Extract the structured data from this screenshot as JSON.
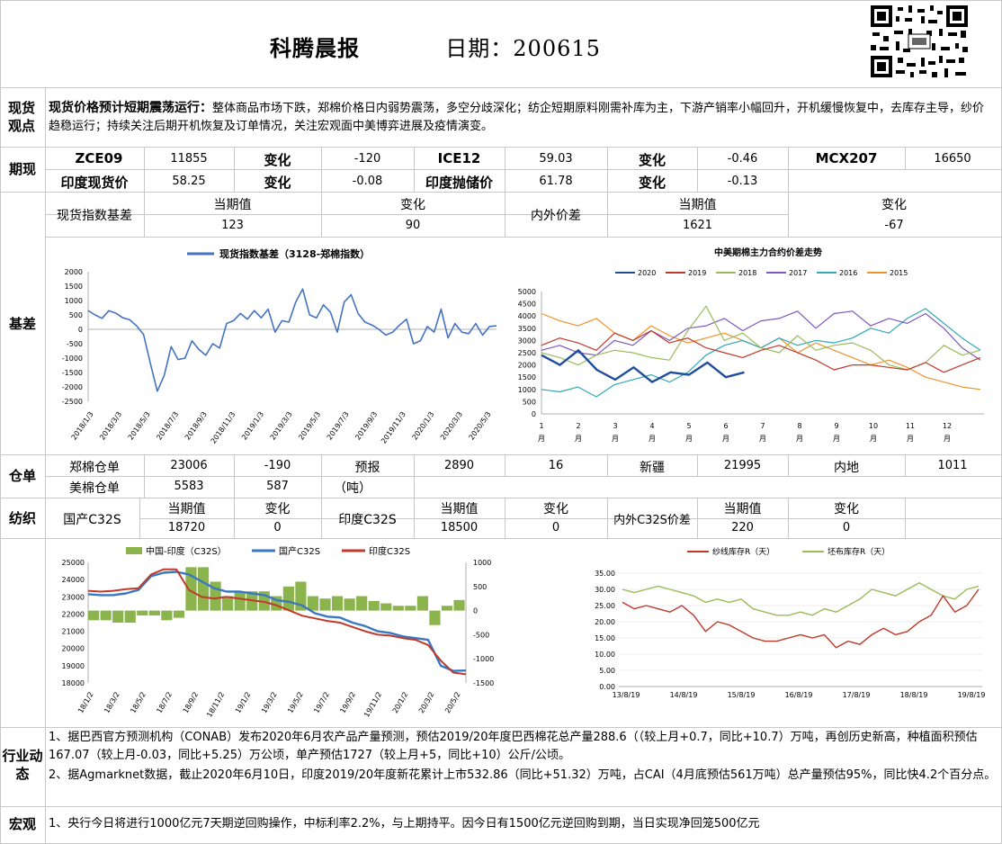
{
  "header": {
    "title": "科腾晨报",
    "date_label": "日期：200615"
  },
  "spot": {
    "label": "现货观点",
    "lead": "现货价格预计短期震荡运行：",
    "body": "整体商品市场下跌，郑棉价格日内弱势震荡，多空分歧深化；纺企短期原料刚需补库为主，下游产销率小幅回升，开机缓慢恢复中，去库存主导，纱价趋稳运行；持续关注后期开机恢复及订单情况，关注宏观面中美博弈进展及疫情演变。"
  },
  "futures": {
    "label": "期现",
    "r1": [
      "ZCE09",
      "11855",
      "变化",
      "-120",
      "ICE12",
      "59.03",
      "变化",
      "-0.46",
      "MCX207",
      "16650"
    ],
    "r2": [
      "印度现货价",
      "58.25",
      "变化",
      "-0.08",
      "印度抛储价",
      "61.78",
      "变化",
      "-0.13"
    ]
  },
  "basis": {
    "label": "基差",
    "h1": "当期值",
    "h2": "变化",
    "h3": "当期值",
    "h4": "变化",
    "l1": "现货指数基差",
    "v1": "123",
    "c1": "90",
    "l2": "内外价差",
    "v2": "1621",
    "c2": "-67"
  },
  "chart_basis": {
    "type": "line",
    "legend": "现货指数基差（3128-郑棉指数）",
    "yticks": [
      "2000",
      "1500",
      "1000",
      "500",
      "0",
      "-500",
      "-1000",
      "-1500",
      "-2000",
      "-2500"
    ],
    "xticks": [
      "2018/1/3",
      "2018/3/3",
      "2018/5/3",
      "2018/7/3",
      "2018/9/3",
      "2018/11/3",
      "2019/1/3",
      "2019/3/3",
      "2019/5/3",
      "2019/7/3",
      "2019/9/3",
      "2019/11/3",
      "2020/1/3",
      "2020/3/3",
      "2020/5/3"
    ],
    "ylim": [
      -2500,
      2000
    ],
    "color": "#4472c4",
    "values": [
      650,
      500,
      380,
      650,
      560,
      400,
      330,
      120,
      -180,
      -1200,
      -2150,
      -1600,
      -600,
      -1050,
      -1000,
      -400,
      -700,
      -900,
      -500,
      -650,
      200,
      300,
      550,
      350,
      650,
      400,
      700,
      -100,
      300,
      250,
      950,
      1400,
      500,
      400,
      850,
      600,
      -100,
      950,
      1200,
      550,
      250,
      150,
      0,
      -200,
      -100,
      150,
      350,
      -500,
      -400,
      100,
      -100,
      700,
      -300,
      200,
      -100,
      -150,
      200,
      -200,
      100,
      123
    ]
  },
  "chart_spread": {
    "type": "line",
    "title": "中美期棉主力合约价差走势",
    "yticks": [
      "5000",
      "4500",
      "4000",
      "3500",
      "3000",
      "2500",
      "2000",
      "1500",
      "1000",
      "500",
      "0"
    ],
    "xticks": [
      "1",
      "2",
      "3",
      "4",
      "5",
      "6",
      "7",
      "8",
      "9",
      "10",
      "11",
      "12"
    ],
    "month_suffix": "月",
    "ylim": [
      0,
      5000
    ],
    "series": [
      {
        "name": "2020",
        "color": "#1f4e9c",
        "values": [
          2400,
          2000,
          2600,
          1800,
          1400,
          1900,
          1300,
          1700,
          1600,
          2100,
          1500,
          1700
        ]
      },
      {
        "name": "2019",
        "color": "#c0392b",
        "values": [
          2800,
          3100,
          2900,
          2600,
          3300,
          3000,
          3400,
          2900,
          3100,
          2700,
          2500,
          2300,
          2600,
          2800,
          2500,
          2200,
          1800,
          2000,
          2000,
          1900,
          1800,
          2100,
          1700,
          2000,
          2300
        ]
      },
      {
        "name": "2018",
        "color": "#9bbb59",
        "values": [
          2500,
          2300,
          2000,
          2400,
          2600,
          2500,
          2300,
          2200,
          3400,
          4400,
          3000,
          3300,
          2700,
          2500,
          3200,
          2600,
          2800,
          2900,
          2600,
          2000,
          1800,
          2100,
          2800,
          2400,
          2600
        ]
      },
      {
        "name": "2017",
        "color": "#7e57c2",
        "values": [
          2600,
          2800,
          2500,
          2400,
          3000,
          2800,
          3400,
          3000,
          3500,
          3600,
          3900,
          3400,
          3800,
          3900,
          4200,
          3500,
          4100,
          4200,
          3600,
          3900,
          3700,
          4100,
          3500,
          2700,
          2200
        ]
      },
      {
        "name": "2016",
        "color": "#31a9b8",
        "values": [
          1000,
          900,
          1100,
          700,
          1200,
          1400,
          1600,
          1300,
          1700,
          2400,
          2800,
          3000,
          2700,
          3100,
          2800,
          3000,
          2900,
          3100,
          3500,
          3300,
          3900,
          4300,
          3700,
          3100,
          2600
        ]
      },
      {
        "name": "2015",
        "color": "#f0932b",
        "values": [
          4100,
          3800,
          3600,
          3900,
          3300,
          3000,
          3600,
          3200,
          2900,
          3100,
          3300,
          3000,
          2700,
          3100,
          2500,
          2900,
          2600,
          2300,
          2000,
          2200,
          1900,
          1500,
          1300,
          1100,
          1000
        ]
      }
    ]
  },
  "warehouse": {
    "label": "仓单",
    "a": "郑棉仓单",
    "av": "23006",
    "ac": "-190",
    "b": "预报",
    "bv": "2890",
    "bc": "16",
    "c": "新疆",
    "cv": "21995",
    "d": "内地",
    "dv": "1011",
    "e": "美棉仓单",
    "ev": "5583",
    "ec": "587",
    "f": "（吨）"
  },
  "yarn": {
    "label": "纺织",
    "a": "国产C32S",
    "h1": "当期值",
    "h2": "变化",
    "av": "18720",
    "ac": "0",
    "b": "印度C32S",
    "h3": "当期值",
    "h4": "变化",
    "bv": "18500",
    "bc": "0",
    "c": "内外C32S价差",
    "h5": "当期值",
    "h6": "变化",
    "cv": "220",
    "cc": "0"
  },
  "chart_yarn": {
    "type": "bar+line",
    "legend": [
      "中国-印度（C32S）",
      "国产C32S",
      "印度C32S"
    ],
    "yleft": [
      "25000",
      "24000",
      "23000",
      "22000",
      "21000",
      "20000",
      "19000",
      "18000"
    ],
    "yright": [
      "1000",
      "500",
      "0",
      "-500",
      "-1000",
      "-1500"
    ],
    "xticks": [
      "18/1/2",
      "18/3/2",
      "18/5/2",
      "18/7/2",
      "18/9/2",
      "18/11/2",
      "19/1/2",
      "19/3/2",
      "19/5/2",
      "19/7/2",
      "19/9/2",
      "19/11/2",
      "20/1/2",
      "20/3/2",
      "20/5/2"
    ],
    "ylim": [
      18000,
      25000
    ],
    "y2lim": [
      -1500,
      1000
    ],
    "colors": {
      "bar": "#8cb44c",
      "cn": "#3a78c3",
      "in": "#c0392b"
    },
    "cn": [
      23150,
      23100,
      23100,
      23200,
      23400,
      24200,
      24400,
      24450,
      24300,
      23900,
      23500,
      23300,
      23300,
      23200,
      23100,
      22800,
      22700,
      22500,
      22050,
      21850,
      21800,
      21500,
      21300,
      21000,
      20900,
      20700,
      20600,
      20500,
      19000,
      18700,
      18720
    ],
    "in": [
      23350,
      23300,
      23350,
      23450,
      23500,
      24300,
      24600,
      24600,
      23400,
      23000,
      22900,
      23000,
      22900,
      22800,
      22700,
      22500,
      22200,
      21900,
      21750,
      21600,
      21500,
      21250,
      21000,
      20800,
      20750,
      20600,
      20500,
      20200,
      19300,
      18600,
      18500
    ],
    "diff": [
      -200,
      -200,
      -250,
      -250,
      -100,
      -100,
      -200,
      -150,
      900,
      900,
      600,
      300,
      400,
      400,
      400,
      300,
      500,
      600,
      300,
      250,
      300,
      250,
      300,
      200,
      150,
      100,
      100,
      300,
      -300,
      100,
      220
    ]
  },
  "chart_stock": {
    "type": "line",
    "legend": [
      "纱线库存R（天）",
      "坯布库存R（天）"
    ],
    "yticks": [
      "35.00",
      "30.00",
      "25.00",
      "20.00",
      "15.00",
      "10.00",
      "5.00",
      "0.00"
    ],
    "xticks": [
      "13/8/19",
      "14/8/19",
      "15/8/19",
      "16/8/19",
      "17/8/19",
      "18/8/19",
      "19/8/19"
    ],
    "ylim": [
      0,
      35
    ],
    "colors": [
      "#c0392b",
      "#9bbb59"
    ],
    "yarn": [
      26,
      24,
      25,
      24,
      23,
      25,
      22,
      17,
      20,
      19,
      17,
      15,
      14,
      14,
      15,
      16,
      15,
      16,
      12,
      14,
      13,
      16,
      18,
      16,
      17,
      20,
      22,
      28,
      23,
      25,
      30
    ],
    "cloth": [
      30,
      29,
      30,
      31,
      30,
      29,
      28,
      26,
      27,
      26,
      27,
      24,
      23,
      22,
      22,
      23,
      22,
      24,
      23,
      25,
      27,
      30,
      29,
      28,
      30,
      32,
      30,
      28,
      27,
      30,
      31
    ]
  },
  "industry": {
    "label": "行业动态",
    "p1": "1、据巴西官方预测机构（CONAB）发布2020年6月农产品产量预测，预估2019/20年度巴西棉花总产量288.6（（较上月+0.7，同比+10.7）万吨，再创历史新高，种植面积预估167.07（较上月-0.03，同比+5.25）万公顷，单产预估1727（较上月+5，同比+10）公斤/公顷。",
    "p2": "2、据Agmarknet数据，截止2020年6月10日，印度2019/20年度新花累计上市532.86（同比+51.32）万吨，占CAI（4月底预估561万吨）总产量预估95%，同比快4.2个百分点。"
  },
  "macro": {
    "label": "宏观",
    "p1": "1、央行今日将进行1000亿元7天期逆回购操作，中标利率2.2%，与上期持平。因今日有1500亿元逆回购到期，当日实现净回笼500亿元"
  }
}
